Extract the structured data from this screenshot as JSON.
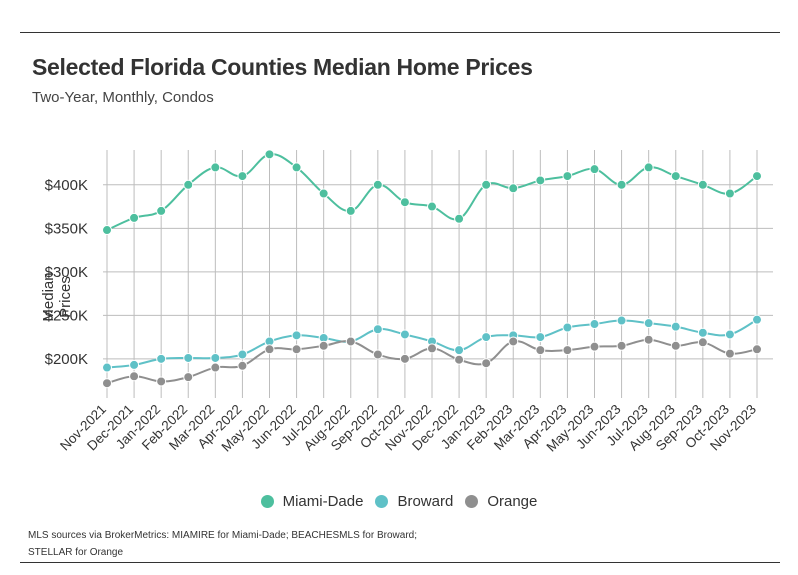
{
  "title": "Selected Florida Counties Median Home Prices",
  "subtitle": "Two-Year, Monthly, Condos",
  "source_line1": "MLS sources via BrokerMetrics: MIAMIRE for Miami-Dade; BEACHESMLS for Broward;",
  "source_line2": "STELLAR for Orange",
  "chart_data": {
    "type": "line",
    "title": "Selected Florida Counties Median Home Prices",
    "subtitle": "Two-Year, Monthly, Condos",
    "xlabel": "",
    "ylabel": "Median Prices",
    "ylim": [
      155000,
      440000
    ],
    "yticks": [
      200000,
      250000,
      300000,
      350000,
      400000
    ],
    "ytick_labels": [
      "$200K",
      "$250K",
      "$300K",
      "$350K",
      "$400K"
    ],
    "grid": true,
    "legend_position": "bottom",
    "categories": [
      "Nov-2021",
      "Dec-2021",
      "Jan-2022",
      "Feb-2022",
      "Mar-2022",
      "Apr-2022",
      "May-2022",
      "Jun-2022",
      "Jul-2022",
      "Aug-2022",
      "Sep-2022",
      "Oct-2022",
      "Nov-2022",
      "Dec-2022",
      "Jan-2023",
      "Feb-2023",
      "Mar-2023",
      "Apr-2023",
      "May-2023",
      "Jun-2023",
      "Jul-2023",
      "Aug-2023",
      "Sep-2023",
      "Oct-2023",
      "Nov-2023"
    ],
    "series": [
      {
        "name": "Miami-Dade",
        "color": "#4dbf9e",
        "values": [
          348000,
          362000,
          370000,
          400000,
          420000,
          410000,
          435000,
          420000,
          390000,
          370000,
          400000,
          380000,
          375000,
          361000,
          400000,
          396000,
          405000,
          410000,
          418000,
          400000,
          420000,
          410000,
          400000,
          390000,
          410000
        ]
      },
      {
        "name": "Broward",
        "color": "#5fc1c7",
        "values": [
          190000,
          193000,
          200000,
          201000,
          201000,
          205000,
          220000,
          227000,
          224000,
          220000,
          234000,
          228000,
          220000,
          210000,
          225000,
          227000,
          225000,
          236000,
          240000,
          244000,
          241000,
          237000,
          230000,
          228000,
          245000
        ]
      },
      {
        "name": "Orange",
        "color": "#8f8f8f",
        "values": [
          172000,
          180000,
          174000,
          179000,
          190000,
          192000,
          211000,
          211000,
          215000,
          220000,
          205000,
          200000,
          212000,
          199000,
          195000,
          220000,
          210000,
          210000,
          214000,
          215000,
          222000,
          215000,
          219000,
          206000,
          211000
        ]
      }
    ]
  }
}
